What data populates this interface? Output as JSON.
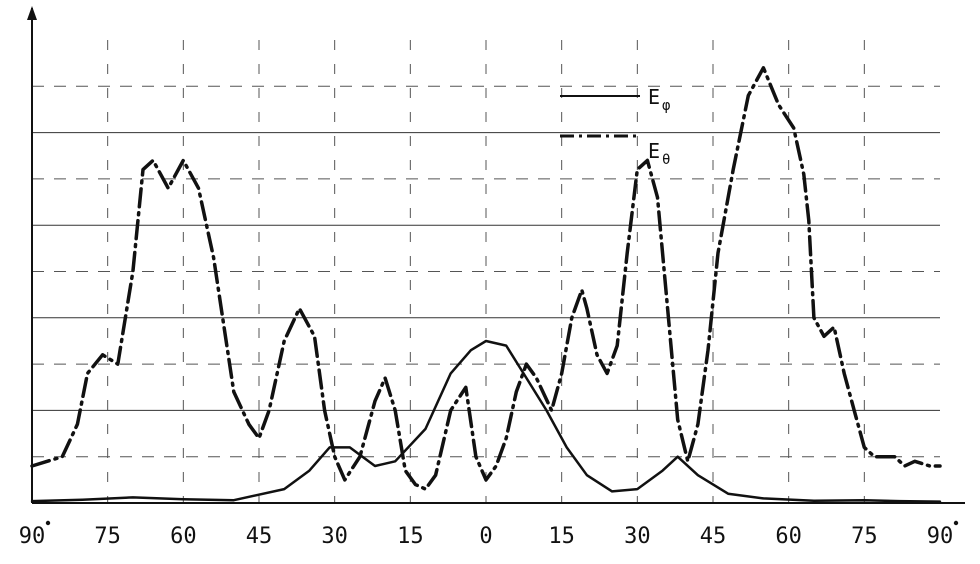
{
  "chart_data": {
    "type": "line",
    "title": "",
    "xlabel": "",
    "ylabel": "",
    "x_tick_labels": [
      "90",
      "75",
      "60",
      "45",
      "30",
      "15",
      "0",
      "15",
      "30",
      "45",
      "60",
      "75",
      "90"
    ],
    "x_tick_values": [
      -90,
      -75,
      -60,
      -45,
      -30,
      -15,
      0,
      15,
      30,
      45,
      60,
      75,
      90
    ],
    "xlim": [
      -90,
      90
    ],
    "ylim": [
      0,
      1
    ],
    "grid": true,
    "legend_position": "top-right",
    "series": [
      {
        "name": "E",
        "subscript": "φ",
        "style": "solid",
        "color": "#111111",
        "x": [
          -90,
          -80,
          -70,
          -60,
          -50,
          -40,
          -35,
          -31,
          -27,
          -22,
          -18,
          -12,
          -7,
          -3,
          0,
          4,
          8,
          12,
          16,
          20,
          25,
          30,
          35,
          38,
          42,
          48,
          55,
          65,
          75,
          82,
          90
        ],
        "y": [
          0.004,
          0.007,
          0.012,
          0.008,
          0.006,
          0.03,
          0.07,
          0.12,
          0.12,
          0.08,
          0.09,
          0.16,
          0.28,
          0.33,
          0.35,
          0.34,
          0.27,
          0.2,
          0.12,
          0.06,
          0.025,
          0.03,
          0.07,
          0.1,
          0.06,
          0.02,
          0.01,
          0.005,
          0.006,
          0.004,
          0.003
        ]
      },
      {
        "name": "E",
        "subscript": "θ",
        "style": "dash-dot",
        "color": "#111111",
        "x": [
          -90,
          -84,
          -81,
          -79,
          -76,
          -73,
          -70,
          -68,
          -66,
          -63,
          -60,
          -57,
          -54,
          -50,
          -47,
          -45,
          -43,
          -40,
          -37,
          -34,
          -32,
          -30,
          -28,
          -25,
          -22,
          -20,
          -18,
          -16,
          -14,
          -12,
          -10,
          -7,
          -4,
          -2,
          0,
          2,
          4,
          6,
          8,
          10,
          13,
          15,
          17,
          19,
          20,
          22,
          24,
          26,
          28,
          30,
          32,
          34,
          36,
          38,
          40,
          42,
          44,
          46,
          49,
          52,
          55,
          58,
          61,
          63,
          64,
          65,
          67,
          69,
          71,
          73,
          75,
          77,
          79,
          81,
          83,
          85,
          88,
          90
        ],
        "y": [
          0.08,
          0.1,
          0.17,
          0.28,
          0.32,
          0.3,
          0.5,
          0.72,
          0.74,
          0.68,
          0.74,
          0.68,
          0.53,
          0.24,
          0.17,
          0.14,
          0.2,
          0.35,
          0.42,
          0.36,
          0.2,
          0.1,
          0.05,
          0.1,
          0.22,
          0.27,
          0.2,
          0.07,
          0.04,
          0.03,
          0.06,
          0.2,
          0.25,
          0.1,
          0.05,
          0.08,
          0.14,
          0.24,
          0.3,
          0.27,
          0.2,
          0.28,
          0.4,
          0.46,
          0.42,
          0.32,
          0.28,
          0.34,
          0.54,
          0.72,
          0.74,
          0.66,
          0.42,
          0.18,
          0.09,
          0.17,
          0.33,
          0.54,
          0.72,
          0.88,
          0.94,
          0.86,
          0.81,
          0.71,
          0.61,
          0.4,
          0.36,
          0.38,
          0.28,
          0.2,
          0.12,
          0.1,
          0.1,
          0.1,
          0.08,
          0.09,
          0.08,
          0.08
        ]
      }
    ]
  },
  "legend": {
    "items": [
      {
        "label": "E",
        "sub": "φ",
        "style": "solid"
      },
      {
        "label": "E",
        "sub": "θ",
        "style": "dash-dot"
      }
    ]
  }
}
